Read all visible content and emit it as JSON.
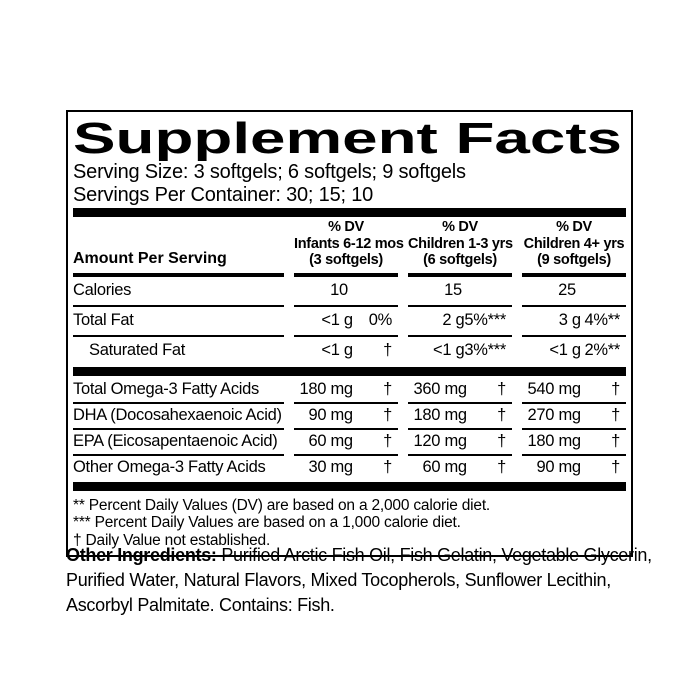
{
  "label": {
    "title": "Supplement Facts",
    "serving_size": "Serving Size: 3 softgels; 6 softgels; 9 softgels",
    "servings_per_container": "Servings Per Container: 30; 15; 10",
    "table": {
      "amount_per_serving_header": "Amount Per Serving",
      "columns": [
        {
          "dv_label": "% DV",
          "group": "Infants 6-12 mos",
          "serving": "(3 softgels)"
        },
        {
          "dv_label": "% DV",
          "group": "Children 1-3 yrs",
          "serving": "(6 softgels)"
        },
        {
          "dv_label": "% DV",
          "group": "Children 4+ yrs",
          "serving": "(9 softgels)"
        }
      ],
      "rows": [
        {
          "name": "Calories",
          "cells": [
            {
              "amount": "10",
              "dv": ""
            },
            {
              "amount": "15",
              "dv": ""
            },
            {
              "amount": "25",
              "dv": ""
            }
          ]
        },
        {
          "name": "Total Fat",
          "cells": [
            {
              "amount": "<1 g",
              "dv": "0%"
            },
            {
              "amount": "2 g",
              "dv": "5%***"
            },
            {
              "amount": "3 g",
              "dv": "4%**"
            }
          ]
        },
        {
          "name": "Saturated Fat",
          "cells": [
            {
              "amount": "<1 g",
              "dv": "†"
            },
            {
              "amount": "<1 g",
              "dv": "3%***"
            },
            {
              "amount": "<1 g",
              "dv": "2%**"
            }
          ]
        },
        {
          "name": "Total Omega-3 Fatty Acids",
          "cells": [
            {
              "amount": "180 mg",
              "dv": "†"
            },
            {
              "amount": "360 mg",
              "dv": "†"
            },
            {
              "amount": "540 mg",
              "dv": "†"
            }
          ]
        },
        {
          "name": "DHA (Docosahexaenoic Acid)",
          "cells": [
            {
              "amount": "90 mg",
              "dv": "†"
            },
            {
              "amount": "180 mg",
              "dv": "†"
            },
            {
              "amount": "270 mg",
              "dv": "†"
            }
          ]
        },
        {
          "name": "EPA (Eicosapentaenoic Acid)",
          "cells": [
            {
              "amount": "60 mg",
              "dv": "†"
            },
            {
              "amount": "120 mg",
              "dv": "†"
            },
            {
              "amount": "180 mg",
              "dv": "†"
            }
          ]
        },
        {
          "name": "Other Omega-3 Fatty Acids",
          "cells": [
            {
              "amount": "30 mg",
              "dv": "†"
            },
            {
              "amount": "60 mg",
              "dv": "†"
            },
            {
              "amount": "90 mg",
              "dv": "†"
            }
          ]
        }
      ]
    },
    "footnotes": [
      "** Percent Daily Values (DV) are based on a 2,000 calorie diet.",
      "*** Percent Daily Values are based on a 1,000 calorie diet.",
      "† Daily Value not established."
    ],
    "other_ingredients": {
      "lead": "Other Ingredients:",
      "line1": "Purified Arctic Fish Oil, Fish Gelatin, Vegetable Glycerin,",
      "line2": "Purified Water, Natural Flavors, Mixed Tocopherols, Sunflower Lecithin,",
      "line3": "Ascorbyl Palmitate. Contains: Fish."
    },
    "colors": {
      "text": "#000000",
      "background": "#ffffff"
    }
  }
}
